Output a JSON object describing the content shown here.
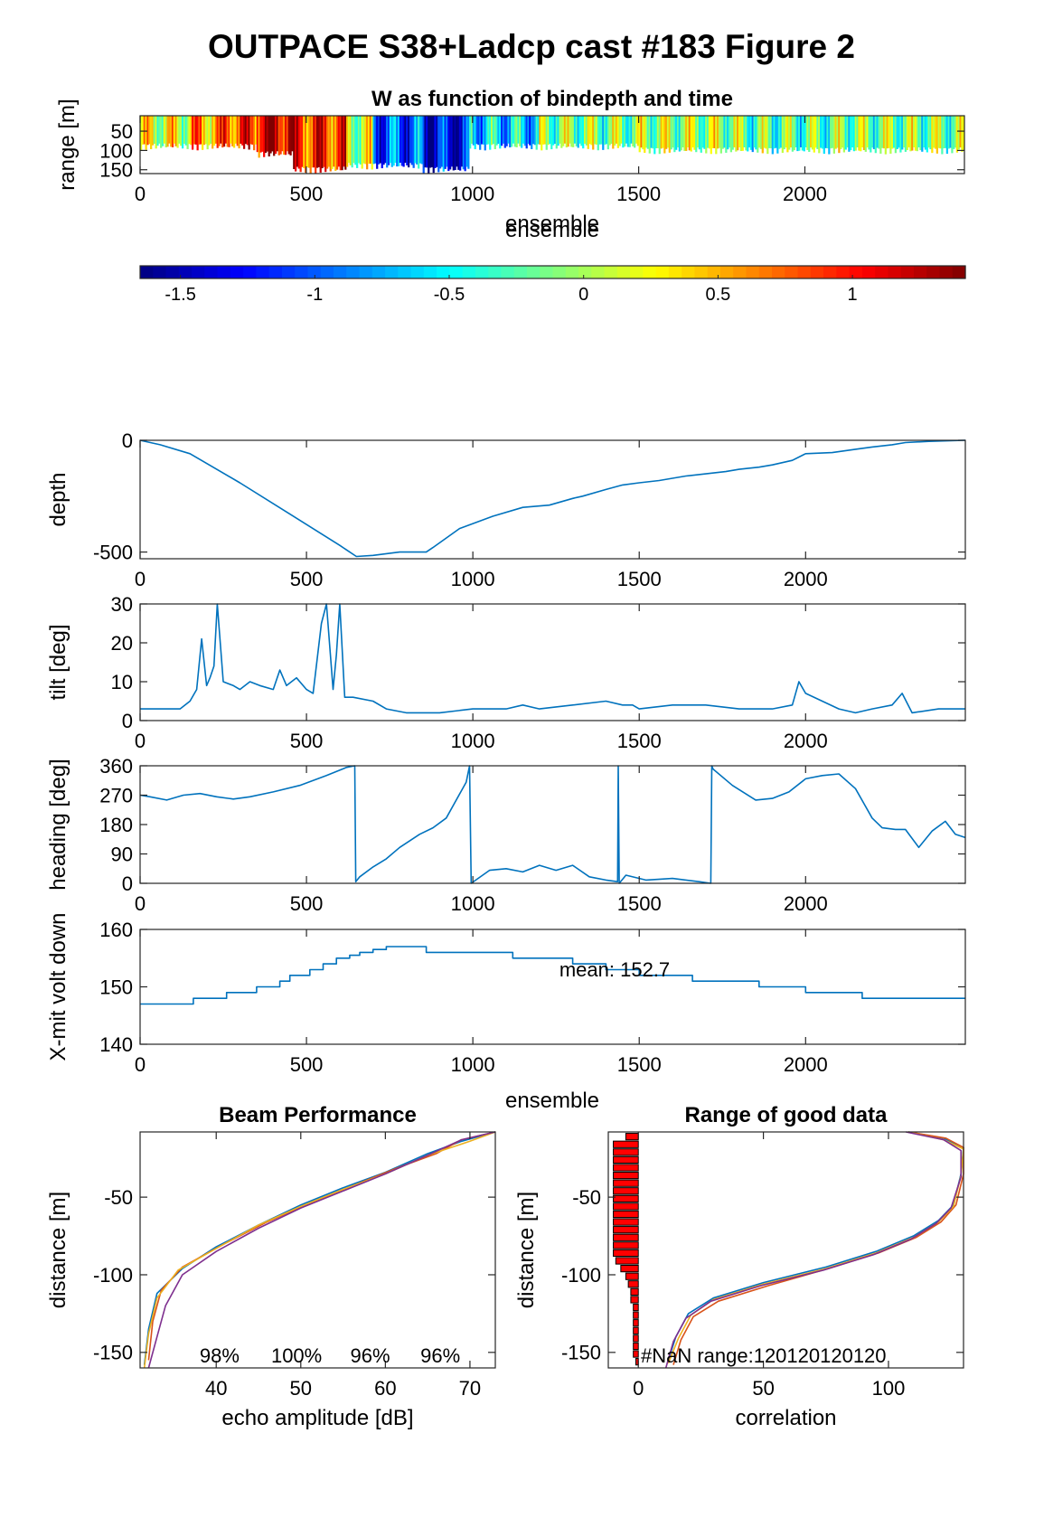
{
  "figure": {
    "title": "OUTPACE S38+Ladcp cast #183 Figure 2"
  },
  "colors": {
    "line": "#0072bd",
    "bar": "#ff0000",
    "bar_edge": "#000000",
    "axis": "#262626"
  },
  "chart_data": [
    {
      "id": "w_image",
      "type": "heatmap",
      "title": "W as function of bindepth and time",
      "xlabel": "ensemble",
      "ylabel": "range [m]",
      "xlim": [
        0,
        2480
      ],
      "ylim": [
        160,
        10
      ],
      "yreverse": true,
      "xticks": [
        0,
        500,
        1000,
        1500,
        2000
      ],
      "yticks": [
        50,
        100,
        150
      ],
      "segments": [
        {
          "x": [
            0,
            150
          ],
          "w": 0.2,
          "depth": 100
        },
        {
          "x": [
            150,
            250
          ],
          "w": 0.55,
          "depth": 100
        },
        {
          "x": [
            250,
            350
          ],
          "w": 0.85,
          "depth": 100
        },
        {
          "x": [
            350,
            460
          ],
          "w": 1.2,
          "depth": 120
        },
        {
          "x": [
            460,
            620
          ],
          "w": 0.9,
          "depth": 160
        },
        {
          "x": [
            620,
            700
          ],
          "w": 0.1,
          "depth": 150
        },
        {
          "x": [
            700,
            850
          ],
          "w": -1.0,
          "depth": 150
        },
        {
          "x": [
            850,
            990
          ],
          "w": -1.3,
          "depth": 160
        },
        {
          "x": [
            990,
            1200
          ],
          "w": -0.6,
          "depth": 100
        },
        {
          "x": [
            1200,
            1500
          ],
          "w": -0.1,
          "depth": 100
        },
        {
          "x": [
            1500,
            1800
          ],
          "w": 0.0,
          "depth": 110
        },
        {
          "x": [
            1800,
            2100
          ],
          "w": -0.2,
          "depth": 110
        },
        {
          "x": [
            2100,
            2480
          ],
          "w": -0.1,
          "depth": 110
        }
      ]
    },
    {
      "id": "colorbar",
      "type": "heatmap",
      "clim": [
        -1.65,
        1.42
      ],
      "ticks": [
        -1.5,
        -1,
        -0.5,
        0,
        0.5,
        1
      ],
      "tick_labels": [
        "-1.5",
        "-1",
        "-0.5",
        "0",
        "0.5",
        "1"
      ]
    },
    {
      "id": "depth",
      "type": "line",
      "ylabel": "depth",
      "xlim": [
        0,
        2480
      ],
      "ylim": [
        -530,
        0
      ],
      "xticks": [
        0,
        500,
        1000,
        1500,
        2000
      ],
      "yticks": [
        -500,
        0
      ],
      "x": [
        0,
        60,
        150,
        300,
        450,
        600,
        650,
        700,
        780,
        860,
        880,
        960,
        1060,
        1150,
        1230,
        1300,
        1330,
        1400,
        1450,
        1500,
        1560,
        1600,
        1640,
        1700,
        1760,
        1800,
        1860,
        1900,
        1960,
        2000,
        2080,
        2150,
        2200,
        2260,
        2300,
        2370,
        2480
      ],
      "y": [
        0,
        -20,
        -60,
        -190,
        -330,
        -470,
        -520,
        -515,
        -500,
        -500,
        -480,
        -395,
        -340,
        -300,
        -290,
        -260,
        -250,
        -220,
        -200,
        -190,
        -180,
        -170,
        -160,
        -150,
        -140,
        -130,
        -120,
        -110,
        -90,
        -60,
        -55,
        -40,
        -30,
        -20,
        -10,
        -5,
        0
      ]
    },
    {
      "id": "tilt",
      "type": "line",
      "ylabel": "tilt [deg]",
      "xlim": [
        0,
        2480
      ],
      "ylim": [
        0,
        30
      ],
      "xticks": [
        0,
        500,
        1000,
        1500,
        2000
      ],
      "yticks": [
        0,
        10,
        20,
        30
      ],
      "x": [
        0,
        60,
        120,
        150,
        170,
        185,
        200,
        210,
        222,
        232,
        250,
        280,
        300,
        330,
        360,
        400,
        420,
        440,
        470,
        500,
        520,
        545,
        560,
        580,
        590,
        600,
        615,
        640,
        700,
        740,
        800,
        900,
        1000,
        1100,
        1150,
        1200,
        1300,
        1400,
        1450,
        1480,
        1500,
        1600,
        1700,
        1800,
        1900,
        1960,
        1980,
        2000,
        2050,
        2100,
        2150,
        2200,
        2260,
        2290,
        2320,
        2400,
        2480
      ],
      "y": [
        3,
        3,
        3,
        5,
        8,
        21,
        9,
        11,
        14,
        30,
        10,
        9,
        8,
        10,
        9,
        8,
        13,
        9,
        11,
        8,
        7,
        25,
        30,
        8,
        17,
        30,
        6,
        6,
        5,
        3,
        2,
        2,
        3,
        3,
        4,
        3,
        4,
        5,
        4,
        4,
        3,
        4,
        4,
        3,
        3,
        4,
        10,
        7,
        5,
        3,
        2,
        3,
        4,
        7,
        2,
        3,
        3
      ]
    },
    {
      "id": "heading",
      "type": "line",
      "ylabel": "heading [deg]",
      "xlim": [
        0,
        2480
      ],
      "ylim": [
        0,
        360
      ],
      "xticks": [
        0,
        500,
        1000,
        1500,
        2000
      ],
      "yticks": [
        0,
        90,
        180,
        270,
        360
      ],
      "x": [
        0,
        30,
        80,
        130,
        180,
        230,
        280,
        330,
        400,
        480,
        560,
        620,
        645,
        648,
        660,
        700,
        740,
        780,
        840,
        880,
        920,
        980,
        990,
        995,
        1050,
        1100,
        1150,
        1200,
        1250,
        1300,
        1350,
        1400,
        1435,
        1437,
        1440,
        1460,
        1520,
        1600,
        1680,
        1715,
        1718,
        1722,
        1780,
        1850,
        1900,
        1950,
        2000,
        2050,
        2100,
        2150,
        2200,
        2230,
        2270,
        2300,
        2340,
        2380,
        2420,
        2450,
        2480
      ],
      "y": [
        270,
        265,
        255,
        270,
        275,
        265,
        258,
        265,
        280,
        300,
        330,
        355,
        360,
        5,
        20,
        50,
        75,
        110,
        150,
        170,
        200,
        310,
        360,
        0,
        40,
        45,
        35,
        55,
        40,
        55,
        20,
        10,
        5,
        360,
        0,
        25,
        10,
        15,
        5,
        0,
        360,
        350,
        300,
        255,
        260,
        280,
        320,
        330,
        335,
        290,
        200,
        170,
        165,
        165,
        110,
        160,
        190,
        150,
        140
      ]
    },
    {
      "id": "xmit_volt",
      "type": "line",
      "ylabel": "X-mit volt down",
      "xlim": [
        0,
        2480
      ],
      "ylim": [
        140,
        160
      ],
      "xticks": [
        0,
        500,
        1000,
        1500,
        2000
      ],
      "yticks": [
        140,
        150,
        160
      ],
      "annotation": "mean: 152.7",
      "annotation_pos": [
        1260,
        151.8
      ],
      "x": [
        0,
        160,
        160,
        260,
        260,
        350,
        350,
        420,
        420,
        450,
        450,
        510,
        510,
        550,
        550,
        590,
        590,
        630,
        630,
        660,
        660,
        700,
        700,
        740,
        740,
        750,
        750,
        860,
        860,
        1000,
        1000,
        1120,
        1120,
        1300,
        1300,
        1400,
        1400,
        1500,
        1500,
        1660,
        1660,
        1860,
        1860,
        2000,
        2000,
        2170,
        2170,
        2300,
        2300,
        2480
      ],
      "y": [
        147,
        147,
        148,
        148,
        149,
        149,
        150,
        150,
        151,
        151,
        152,
        152,
        153,
        153,
        154,
        154,
        155,
        155,
        155.5,
        155.5,
        156,
        156,
        156.5,
        156.5,
        157,
        157,
        157,
        157,
        156,
        156,
        156,
        156,
        155,
        155,
        154,
        154,
        153,
        153,
        152,
        152,
        151,
        151,
        150,
        150,
        149,
        149,
        148,
        148,
        148,
        148
      ]
    },
    {
      "id": "beam_perf",
      "type": "line",
      "title": "Beam Performance",
      "xlabel": "echo amplitude [dB]",
      "ylabel": "distance [m]",
      "xlim": [
        31,
        73
      ],
      "ylim": [
        -160,
        -8
      ],
      "xticks": [
        40,
        50,
        60,
        70
      ],
      "yticks": [
        -150,
        -100,
        -50
      ],
      "annotations": [
        {
          "text": "98%",
          "x": 40.4
        },
        {
          "text": "100%",
          "x": 49.5
        },
        {
          "text": "96%",
          "x": 58.2
        },
        {
          "text": "96%",
          "x": 66.5
        }
      ],
      "series": [
        {
          "color": "#0072bd",
          "x": [
            73,
            69,
            65,
            60,
            55,
            50,
            45,
            40,
            36,
            33,
            32,
            31.5
          ],
          "y": [
            -8,
            -14,
            -22,
            -34,
            -44,
            -55,
            -68,
            -82,
            -96,
            -112,
            -135,
            -158
          ]
        },
        {
          "color": "#d95319",
          "x": [
            73,
            69,
            66,
            61,
            56,
            51,
            46,
            41,
            36,
            33.5,
            32.5,
            32
          ],
          "y": [
            -8,
            -13,
            -22,
            -32,
            -43,
            -54,
            -66,
            -80,
            -95,
            -110,
            -130,
            -155
          ]
        },
        {
          "color": "#edb120",
          "x": [
            73,
            70,
            65,
            60,
            55,
            50,
            45,
            40,
            35.5,
            33,
            32,
            31.5
          ],
          "y": [
            -8,
            -14,
            -23,
            -35,
            -45,
            -56,
            -68,
            -83,
            -97,
            -115,
            -138,
            -160
          ]
        },
        {
          "color": "#7e2f8e",
          "x": [
            73,
            69,
            65,
            60,
            55,
            50,
            45,
            40,
            36,
            34,
            33,
            32
          ],
          "y": [
            -8,
            -13,
            -23,
            -35,
            -46,
            -57,
            -70,
            -85,
            -100,
            -120,
            -140,
            -160
          ]
        }
      ]
    },
    {
      "id": "range_good",
      "type": "line",
      "title": "Range of good data",
      "xlabel": "correlation",
      "ylabel": "distance [m]",
      "xlim": [
        -12,
        130
      ],
      "ylim": [
        -160,
        -8
      ],
      "xticks": [
        0,
        50,
        100
      ],
      "yticks": [
        -150,
        -100,
        -50
      ],
      "annotation": "#NaN range:120120120120",
      "bars": {
        "y": [
          -11,
          -16,
          -21,
          -26,
          -31,
          -36,
          -41,
          -46,
          -51,
          -56,
          -61,
          -66,
          -71,
          -76,
          -81,
          -86,
          -91,
          -96,
          -101,
          -106,
          -111,
          -116,
          -121,
          -126,
          -131,
          -136,
          -141,
          -146,
          -151,
          -156
        ],
        "values": [
          -5,
          -10,
          -10,
          -10,
          -10,
          -10,
          -10,
          -10,
          -10,
          -10,
          -10,
          -10,
          -10,
          -10,
          -10,
          -10,
          -9,
          -7,
          -5,
          -4,
          -3,
          -3,
          -2,
          -2,
          -2,
          -2,
          -2,
          -2,
          -2,
          -1
        ]
      },
      "series": [
        {
          "color": "#0072bd",
          "x": [
            108,
            122,
            130,
            129,
            126,
            120,
            110,
            95,
            75,
            50,
            30,
            20,
            15,
            12
          ],
          "y": [
            -8,
            -12,
            -18,
            -35,
            -55,
            -65,
            -75,
            -85,
            -95,
            -105,
            -115,
            -125,
            -140,
            -155
          ]
        },
        {
          "color": "#d95319",
          "x": [
            108,
            123,
            130,
            130,
            127,
            121,
            111,
            96,
            76,
            52,
            32,
            22,
            17,
            14
          ],
          "y": [
            -8,
            -12,
            -18,
            -35,
            -55,
            -66,
            -76,
            -86,
            -96,
            -107,
            -117,
            -127,
            -142,
            -158
          ]
        },
        {
          "color": "#edb120",
          "x": [
            108,
            122,
            130,
            129,
            126,
            120,
            110,
            95,
            75,
            50,
            30,
            21,
            16,
            12
          ],
          "y": [
            -8,
            -13,
            -19,
            -36,
            -56,
            -66,
            -76,
            -86,
            -96,
            -106,
            -116,
            -126,
            -141,
            -157
          ]
        },
        {
          "color": "#7e2f8e",
          "x": [
            107,
            122,
            129,
            129,
            125,
            119,
            109,
            94,
            74,
            49,
            29,
            19,
            14,
            11
          ],
          "y": [
            -8,
            -13,
            -20,
            -37,
            -57,
            -67,
            -77,
            -87,
            -97,
            -107,
            -117,
            -128,
            -143,
            -160
          ]
        }
      ]
    }
  ]
}
